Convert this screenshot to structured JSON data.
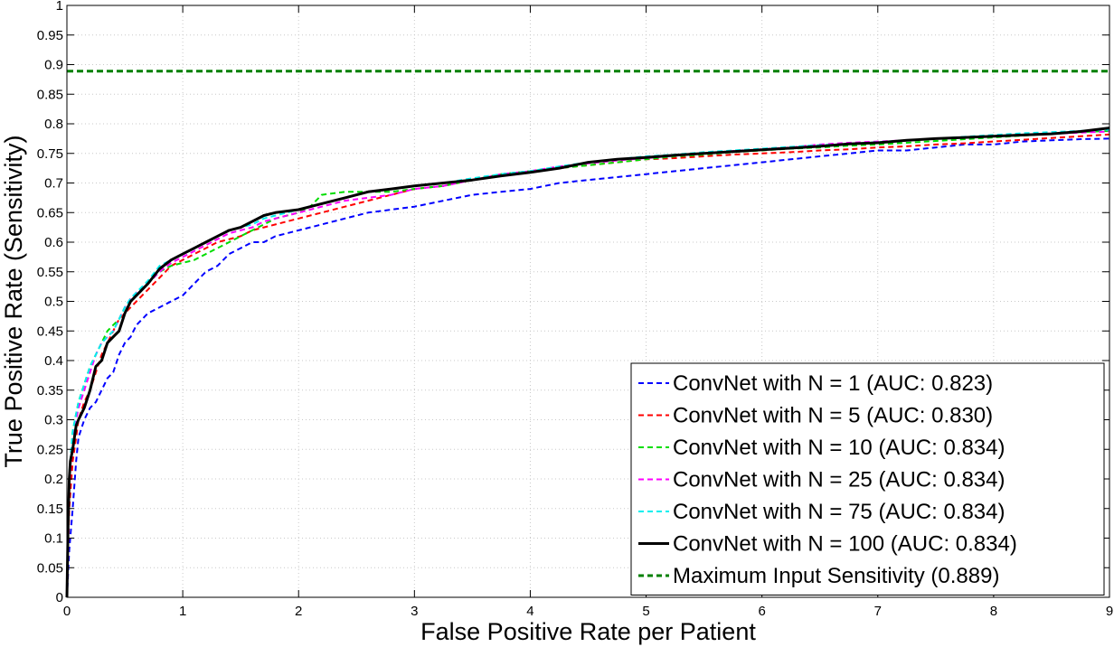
{
  "chart_data": {
    "type": "line",
    "title": "",
    "xlabel": "False Positive Rate per Patient",
    "ylabel": "True Positive Rate (Sensitivity)",
    "xlim": [
      0,
      9
    ],
    "ylim": [
      0,
      1
    ],
    "grid": true,
    "legend_position": "bottom-right",
    "x_ticks": [
      0,
      1,
      2,
      3,
      4,
      5,
      6,
      7,
      8,
      9
    ],
    "x_tick_labels": [
      "0",
      "1",
      "2",
      "3",
      "4",
      "5",
      "6",
      "7",
      "8",
      "9"
    ],
    "y_ticks": [
      0,
      0.05,
      0.1,
      0.15,
      0.2,
      0.25,
      0.3,
      0.35,
      0.4,
      0.45,
      0.5,
      0.55,
      0.6,
      0.65,
      0.7,
      0.75,
      0.8,
      0.85,
      0.9,
      0.95,
      1
    ],
    "y_tick_labels": [
      "0",
      "0.05",
      "0.1",
      "0.15",
      "0.2",
      "0.25",
      "0.3",
      "0.35",
      "0.4",
      "0.45",
      "0.5",
      "0.55",
      "0.6",
      "0.65",
      "0.7",
      "0.75",
      "0.8",
      "0.85",
      "0.9",
      "0.95",
      "1"
    ],
    "series": [
      {
        "name": "ConvNet with N = 1 (AUC: 0.823)",
        "color": "#0000ff",
        "style": "dashed",
        "x": [
          0,
          0.02,
          0.05,
          0.08,
          0.1,
          0.15,
          0.2,
          0.25,
          0.3,
          0.35,
          0.4,
          0.45,
          0.5,
          0.55,
          0.6,
          0.7,
          0.8,
          0.9,
          1.0,
          1.1,
          1.2,
          1.3,
          1.4,
          1.5,
          1.6,
          1.7,
          1.8,
          2.0,
          2.2,
          2.4,
          2.6,
          2.8,
          3.0,
          3.25,
          3.5,
          3.75,
          4.0,
          4.25,
          4.5,
          4.75,
          5.0,
          5.25,
          5.5,
          5.75,
          6.0,
          6.25,
          6.5,
          6.75,
          7.0,
          7.25,
          7.5,
          7.75,
          8.0,
          8.25,
          8.5,
          8.75,
          9.0
        ],
        "y": [
          0,
          0.08,
          0.15,
          0.23,
          0.27,
          0.3,
          0.32,
          0.33,
          0.35,
          0.37,
          0.38,
          0.41,
          0.43,
          0.44,
          0.46,
          0.48,
          0.49,
          0.5,
          0.51,
          0.53,
          0.55,
          0.56,
          0.58,
          0.59,
          0.6,
          0.6,
          0.61,
          0.62,
          0.63,
          0.64,
          0.65,
          0.655,
          0.66,
          0.67,
          0.68,
          0.685,
          0.69,
          0.7,
          0.705,
          0.71,
          0.715,
          0.72,
          0.725,
          0.73,
          0.735,
          0.74,
          0.745,
          0.75,
          0.755,
          0.755,
          0.76,
          0.765,
          0.765,
          0.77,
          0.772,
          0.774,
          0.775
        ]
      },
      {
        "name": "ConvNet with N = 5 (AUC: 0.830)",
        "color": "#ff0000",
        "style": "dashed",
        "x": [
          0,
          0.02,
          0.05,
          0.08,
          0.1,
          0.15,
          0.2,
          0.25,
          0.3,
          0.35,
          0.4,
          0.45,
          0.5,
          0.55,
          0.6,
          0.7,
          0.8,
          0.9,
          1.0,
          1.1,
          1.2,
          1.3,
          1.4,
          1.5,
          1.6,
          1.7,
          1.8,
          2.0,
          2.2,
          2.4,
          2.6,
          2.8,
          3.0,
          3.25,
          3.5,
          3.75,
          4.0,
          4.25,
          4.5,
          4.75,
          5.0,
          5.25,
          5.5,
          5.75,
          6.0,
          6.25,
          6.5,
          6.75,
          7.0,
          7.25,
          7.5,
          7.75,
          8.0,
          8.25,
          8.5,
          8.75,
          9.0
        ],
        "y": [
          0,
          0.15,
          0.23,
          0.27,
          0.3,
          0.33,
          0.35,
          0.38,
          0.41,
          0.43,
          0.45,
          0.47,
          0.48,
          0.49,
          0.5,
          0.52,
          0.54,
          0.56,
          0.57,
          0.58,
          0.59,
          0.6,
          0.605,
          0.61,
          0.62,
          0.625,
          0.63,
          0.64,
          0.65,
          0.66,
          0.67,
          0.68,
          0.69,
          0.695,
          0.705,
          0.715,
          0.72,
          0.725,
          0.73,
          0.735,
          0.74,
          0.742,
          0.745,
          0.748,
          0.75,
          0.752,
          0.755,
          0.757,
          0.76,
          0.762,
          0.765,
          0.767,
          0.77,
          0.773,
          0.776,
          0.779,
          0.782
        ]
      },
      {
        "name": "ConvNet with N = 10 (AUC: 0.834)",
        "color": "#00dd00",
        "style": "dashed",
        "x": [
          0,
          0.02,
          0.05,
          0.08,
          0.1,
          0.15,
          0.2,
          0.25,
          0.3,
          0.35,
          0.4,
          0.45,
          0.5,
          0.55,
          0.6,
          0.7,
          0.8,
          0.9,
          1.0,
          1.1,
          1.2,
          1.3,
          1.4,
          1.5,
          1.6,
          1.7,
          1.8,
          2.0,
          2.1,
          2.2,
          2.4,
          2.6,
          2.8,
          3.0,
          3.25,
          3.5,
          3.75,
          4.0,
          4.25,
          4.5,
          4.75,
          5.0,
          5.25,
          5.5,
          5.75,
          6.0,
          6.25,
          6.5,
          6.75,
          7.0,
          7.25,
          7.5,
          7.75,
          8.0,
          8.25,
          8.5,
          8.75,
          9.0
        ],
        "y": [
          0,
          0.2,
          0.28,
          0.31,
          0.33,
          0.36,
          0.39,
          0.41,
          0.43,
          0.45,
          0.46,
          0.47,
          0.49,
          0.5,
          0.51,
          0.53,
          0.55,
          0.56,
          0.565,
          0.57,
          0.58,
          0.59,
          0.6,
          0.61,
          0.62,
          0.63,
          0.64,
          0.65,
          0.66,
          0.68,
          0.685,
          0.685,
          0.685,
          0.69,
          0.695,
          0.705,
          0.715,
          0.72,
          0.725,
          0.73,
          0.735,
          0.74,
          0.745,
          0.748,
          0.752,
          0.755,
          0.758,
          0.76,
          0.763,
          0.765,
          0.768,
          0.771,
          0.774,
          0.777,
          0.78,
          0.783,
          0.786,
          0.788
        ]
      },
      {
        "name": "ConvNet with N = 25 (AUC: 0.834)",
        "color": "#ff00ff",
        "style": "dashed",
        "x": [
          0,
          0.02,
          0.05,
          0.08,
          0.1,
          0.15,
          0.2,
          0.25,
          0.3,
          0.35,
          0.4,
          0.45,
          0.5,
          0.55,
          0.6,
          0.7,
          0.8,
          0.9,
          1.0,
          1.1,
          1.2,
          1.3,
          1.4,
          1.5,
          1.6,
          1.7,
          1.8,
          2.0,
          2.2,
          2.4,
          2.6,
          2.8,
          3.0,
          3.25,
          3.5,
          3.75,
          4.0,
          4.25,
          4.5,
          4.75,
          5.0,
          5.25,
          5.5,
          5.75,
          6.0,
          6.25,
          6.5,
          6.75,
          7.0,
          7.25,
          7.5,
          7.75,
          8.0,
          8.25,
          8.5,
          8.75,
          9.0
        ],
        "y": [
          0,
          0.19,
          0.27,
          0.3,
          0.32,
          0.35,
          0.38,
          0.41,
          0.43,
          0.44,
          0.45,
          0.47,
          0.49,
          0.505,
          0.515,
          0.53,
          0.55,
          0.565,
          0.575,
          0.585,
          0.595,
          0.605,
          0.615,
          0.62,
          0.625,
          0.635,
          0.64,
          0.65,
          0.66,
          0.67,
          0.675,
          0.68,
          0.69,
          0.695,
          0.705,
          0.715,
          0.72,
          0.728,
          0.733,
          0.738,
          0.742,
          0.746,
          0.75,
          0.754,
          0.757,
          0.76,
          0.765,
          0.768,
          0.77,
          0.772,
          0.775,
          0.777,
          0.779,
          0.781,
          0.783,
          0.785,
          0.787
        ]
      },
      {
        "name": "ConvNet with N = 75 (AUC: 0.834)",
        "color": "#00eeee",
        "style": "dashed",
        "x": [
          0,
          0.02,
          0.05,
          0.08,
          0.1,
          0.15,
          0.2,
          0.25,
          0.3,
          0.35,
          0.4,
          0.45,
          0.5,
          0.55,
          0.6,
          0.7,
          0.8,
          0.9,
          1.0,
          1.1,
          1.2,
          1.3,
          1.4,
          1.5,
          1.6,
          1.7,
          1.8,
          2.0,
          2.2,
          2.4,
          2.6,
          2.8,
          3.0,
          3.25,
          3.5,
          3.75,
          4.0,
          4.25,
          4.5,
          4.75,
          5.0,
          5.25,
          5.5,
          5.75,
          6.0,
          6.25,
          6.5,
          6.75,
          7.0,
          7.25,
          7.5,
          7.75,
          8.0,
          8.25,
          8.5,
          8.75,
          9.0
        ],
        "y": [
          0,
          0.21,
          0.28,
          0.31,
          0.33,
          0.36,
          0.39,
          0.41,
          0.43,
          0.44,
          0.45,
          0.47,
          0.49,
          0.505,
          0.515,
          0.535,
          0.56,
          0.57,
          0.58,
          0.59,
          0.6,
          0.61,
          0.62,
          0.625,
          0.63,
          0.64,
          0.645,
          0.655,
          0.665,
          0.675,
          0.685,
          0.69,
          0.695,
          0.7,
          0.708,
          0.715,
          0.72,
          0.728,
          0.735,
          0.74,
          0.745,
          0.748,
          0.752,
          0.755,
          0.758,
          0.761,
          0.764,
          0.766,
          0.769,
          0.772,
          0.775,
          0.778,
          0.781,
          0.784,
          0.786,
          0.788,
          0.79
        ]
      },
      {
        "name": "ConvNet with N = 100 (AUC: 0.834)",
        "color": "#000000",
        "style": "solid",
        "x": [
          0,
          0.01,
          0.02,
          0.03,
          0.05,
          0.08,
          0.1,
          0.15,
          0.2,
          0.25,
          0.3,
          0.35,
          0.4,
          0.45,
          0.5,
          0.55,
          0.6,
          0.7,
          0.8,
          0.9,
          1.0,
          1.1,
          1.2,
          1.3,
          1.4,
          1.5,
          1.6,
          1.7,
          1.8,
          2.0,
          2.2,
          2.4,
          2.6,
          2.8,
          3.0,
          3.25,
          3.5,
          3.75,
          4.0,
          4.25,
          4.5,
          4.75,
          5.0,
          5.25,
          5.5,
          5.75,
          6.0,
          6.25,
          6.5,
          6.75,
          7.0,
          7.25,
          7.5,
          7.75,
          8.0,
          8.25,
          8.5,
          8.75,
          9.0
        ],
        "y": [
          0,
          0.12,
          0.2,
          0.23,
          0.25,
          0.29,
          0.3,
          0.32,
          0.35,
          0.39,
          0.4,
          0.43,
          0.44,
          0.45,
          0.48,
          0.5,
          0.51,
          0.53,
          0.555,
          0.57,
          0.58,
          0.59,
          0.6,
          0.61,
          0.62,
          0.625,
          0.635,
          0.645,
          0.65,
          0.655,
          0.665,
          0.675,
          0.685,
          0.69,
          0.695,
          0.7,
          0.705,
          0.712,
          0.718,
          0.725,
          0.735,
          0.74,
          0.743,
          0.747,
          0.75,
          0.753,
          0.756,
          0.759,
          0.762,
          0.766,
          0.768,
          0.772,
          0.775,
          0.777,
          0.779,
          0.781,
          0.783,
          0.787,
          0.793
        ]
      },
      {
        "name": "Maximum Input Sensitivity (0.889)",
        "color": "#008000",
        "style": "dashed",
        "x": [
          0,
          9
        ],
        "y": [
          0.889,
          0.889
        ]
      }
    ]
  }
}
